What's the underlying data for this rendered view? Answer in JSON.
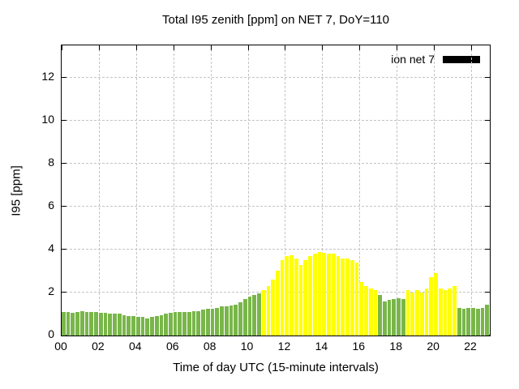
{
  "chart_data": {
    "type": "bar",
    "title": "Total I95 zenith [ppm] on NET 7, DoY=110",
    "xlabel": "Time of day UTC (15-minute intervals)",
    "ylabel": "I95 [ppm]",
    "legend": [
      {
        "label": "ion net 7",
        "swatch_color": "#000000"
      }
    ],
    "xlim": [
      0,
      23
    ],
    "ylim": [
      0,
      13.5
    ],
    "xtick_values": [
      0,
      2,
      4,
      6,
      8,
      10,
      12,
      14,
      16,
      18,
      20,
      22
    ],
    "xtick_labels": [
      "00",
      "02",
      "04",
      "06",
      "08",
      "10",
      "12",
      "14",
      "16",
      "18",
      "20",
      "22"
    ],
    "ytick_values": [
      0,
      2,
      4,
      6,
      8,
      10,
      12
    ],
    "ytick_labels": [
      "0",
      "2",
      "4",
      "6",
      "8",
      "10",
      "12"
    ],
    "grid": true,
    "x_start": 0,
    "x_step": 0.25,
    "bar_width": 0.25,
    "color_rule": {
      "threshold": 2.0,
      "below": "#79b64a",
      "above": "#ffff00"
    },
    "values": [
      1.1,
      1.1,
      1.05,
      1.1,
      1.15,
      1.1,
      1.1,
      1.1,
      1.05,
      1.05,
      1.0,
      1.0,
      1.0,
      0.95,
      0.9,
      0.9,
      0.85,
      0.85,
      0.8,
      0.85,
      0.9,
      0.95,
      1.0,
      1.05,
      1.1,
      1.1,
      1.1,
      1.1,
      1.15,
      1.15,
      1.2,
      1.25,
      1.25,
      1.3,
      1.35,
      1.35,
      1.4,
      1.45,
      1.55,
      1.7,
      1.8,
      1.9,
      1.95,
      2.1,
      2.3,
      2.6,
      3.0,
      3.5,
      3.7,
      3.75,
      3.6,
      3.3,
      3.5,
      3.7,
      3.8,
      3.9,
      3.85,
      3.8,
      3.8,
      3.7,
      3.6,
      3.6,
      3.5,
      3.4,
      2.5,
      2.3,
      2.2,
      2.1,
      1.9,
      1.6,
      1.65,
      1.7,
      1.75,
      1.7,
      2.1,
      2.0,
      2.1,
      2.0,
      2.2,
      2.7,
      2.9,
      2.2,
      2.1,
      2.2,
      2.3,
      1.3,
      1.25,
      1.3,
      1.3,
      1.25,
      1.3,
      1.45
    ]
  }
}
